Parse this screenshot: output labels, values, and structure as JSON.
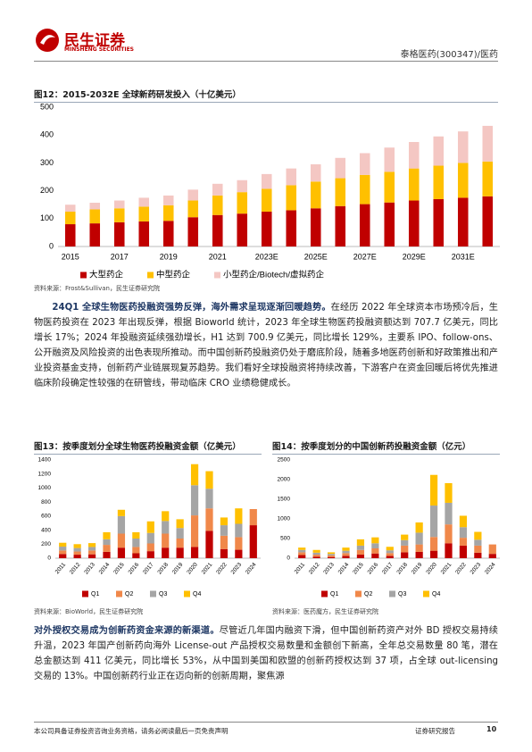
{
  "document": {
    "header": {
      "logo_cn": "民生证券",
      "logo_en": "MINSHENG SECURITIES",
      "right": "泰格医药(300347)/医药"
    },
    "paragraphs": [
      {
        "lead": "24Q1 全球生物医药投融资强势反弹，海外需求呈现逐渐回暖趋势。",
        "body": "在经历 2022 年全球资本市场预冷后，生物医药投资在 2023 年出现反弹，根据 Bioworld 统计，2023 年全球生物医药投融资额达到 707.7 亿美元，同比增长 17%；2024 年投融资延续强劲增长，H1 达到 700.9 亿美元，同比增长 129%，主要系 IPO、follow-ons、公开融资及风险投资的出色表现所推动。而中国创新药投融资仍处于磨底阶段，随着多地医药创新和好政策推出和产业投资基金支持，创新药产业链展现复苏趋势。我们看好全球投融资将持续改善，下游客户在资金回暖后将优先推进临床阶段确定性较强的在研管线，带动临床 CRO 业绩稳健成长。"
      },
      {
        "lead": "对外授权交易成为创新药资金来源的新渠道。",
        "body": "尽管近几年国内融资下滑，但中国创新药资产对外 BD 授权交易持续升温，2023 年国产创新药向海外 License-out 产品授权交易数量和金额创下新高，全年总交易数量 80 笔，潜在总金额达到 411 亿美元，同比增长 53%，从中国到美国和欧盟的创新药授权达到 37 项，占全球 out-licensing 交易的 13%。中国创新药行业正在迈向新的创新周期，聚焦源"
      }
    ],
    "footer": {
      "disclaimer": "本公司具备证券投资咨询业务资格，请务必阅读最后一页免责声明",
      "label": "证券研究报告",
      "page": "10"
    }
  },
  "chart_data": [
    {
      "type": "stacked-bar",
      "title": "图12：2015-2032E 全球新药研发投入（十亿美元）",
      "note": "资料来源：Frost&Sullivan，民生证券研究院",
      "categories": [
        "2015",
        null,
        "2017",
        null,
        "2019",
        null,
        "2021",
        null,
        "2023E",
        null,
        "2025E",
        null,
        "2027E",
        null,
        "2029E",
        null,
        "2031E",
        null
      ],
      "series": [
        {
          "name": "大型药企",
          "color": "#c00000",
          "values": [
            80,
            83,
            87,
            90,
            92,
            105,
            113,
            118,
            125,
            130,
            137,
            145,
            152,
            158,
            165,
            170,
            175,
            180
          ]
        },
        {
          "name": "中型药企",
          "color": "#ffc000",
          "values": [
            45,
            50,
            50,
            53,
            56,
            60,
            70,
            77,
            82,
            90,
            96,
            100,
            105,
            110,
            115,
            120,
            125,
            125
          ]
        },
        {
          "name": "小型药企/Biotech/虚拟药企",
          "color": "#f4c7c3",
          "values": [
            25,
            24,
            28,
            32,
            35,
            39,
            42,
            43,
            53,
            60,
            62,
            73,
            78,
            87,
            95,
            105,
            113,
            128
          ]
        }
      ],
      "ylim": [
        0,
        500
      ],
      "yticks": [
        0,
        100,
        200,
        300,
        400,
        500
      ],
      "grid": false
    },
    {
      "type": "stacked-bar",
      "title": "图13：按季度划分全球生物医药投融资金额（亿美元）",
      "note": "资料来源：BioWorld，民生证券研究院",
      "categories": [
        "2011",
        "2012",
        "2013",
        "2014",
        "2015",
        "2016",
        "2017",
        "2018",
        "2019",
        "2020",
        "2021",
        "2022",
        "2023",
        "2024"
      ],
      "series": [
        {
          "name": "Q1",
          "color": "#c00000",
          "values": [
            60,
            50,
            55,
            90,
            150,
            70,
            100,
            150,
            150,
            160,
            390,
            130,
            120,
            470
          ]
        },
        {
          "name": "Q2",
          "color": "#f0884a",
          "values": [
            50,
            45,
            55,
            100,
            200,
            90,
            110,
            200,
            130,
            450,
            320,
            190,
            180,
            230
          ]
        },
        {
          "name": "Q3",
          "color": "#a5a5a5",
          "values": [
            55,
            50,
            50,
            80,
            250,
            120,
            150,
            180,
            150,
            430,
            280,
            150,
            190,
            null
          ]
        },
        {
          "name": "Q4",
          "color": "#ffc000",
          "values": [
            55,
            55,
            55,
            100,
            90,
            90,
            165,
            140,
            125,
            300,
            250,
            110,
            220,
            null
          ]
        }
      ],
      "ylim": [
        0,
        1400
      ],
      "yticks": [
        0,
        200,
        400,
        600,
        800,
        1000,
        1200,
        1400
      ],
      "grid": false
    },
    {
      "type": "stacked-bar",
      "title": "图14：按季度划分的中国创新药投融资金额（亿元）",
      "note": "资料来源：医药魔方，民生证券研究院",
      "categories": [
        "2011",
        "2012",
        "2013",
        "2014",
        "2015",
        "2016",
        "2017",
        "2018",
        "2019",
        "2020",
        "2021",
        "2022",
        "2023",
        "2024"
      ],
      "series": [
        {
          "name": "Q1",
          "color": "#c00000",
          "values": [
            80,
            40,
            30,
            60,
            90,
            120,
            60,
            150,
            160,
            190,
            380,
            320,
            140,
            110
          ]
        },
        {
          "name": "Q2",
          "color": "#f0884a",
          "values": [
            70,
            50,
            40,
            70,
            120,
            130,
            70,
            170,
            190,
            350,
            480,
            200,
            180,
            240
          ]
        },
        {
          "name": "Q3",
          "color": "#a5a5a5",
          "values": [
            60,
            50,
            40,
            60,
            110,
            130,
            70,
            140,
            300,
            800,
            550,
            270,
            150,
            null
          ]
        },
        {
          "name": "Q4",
          "color": "#ffc000",
          "values": [
            60,
            70,
            40,
            80,
            160,
            150,
            90,
            140,
            260,
            780,
            500,
            290,
            200,
            null
          ]
        }
      ],
      "ylim": [
        0,
        2500
      ],
      "yticks": [
        0,
        500,
        1000,
        1500,
        2000,
        2500
      ],
      "grid": false
    }
  ]
}
